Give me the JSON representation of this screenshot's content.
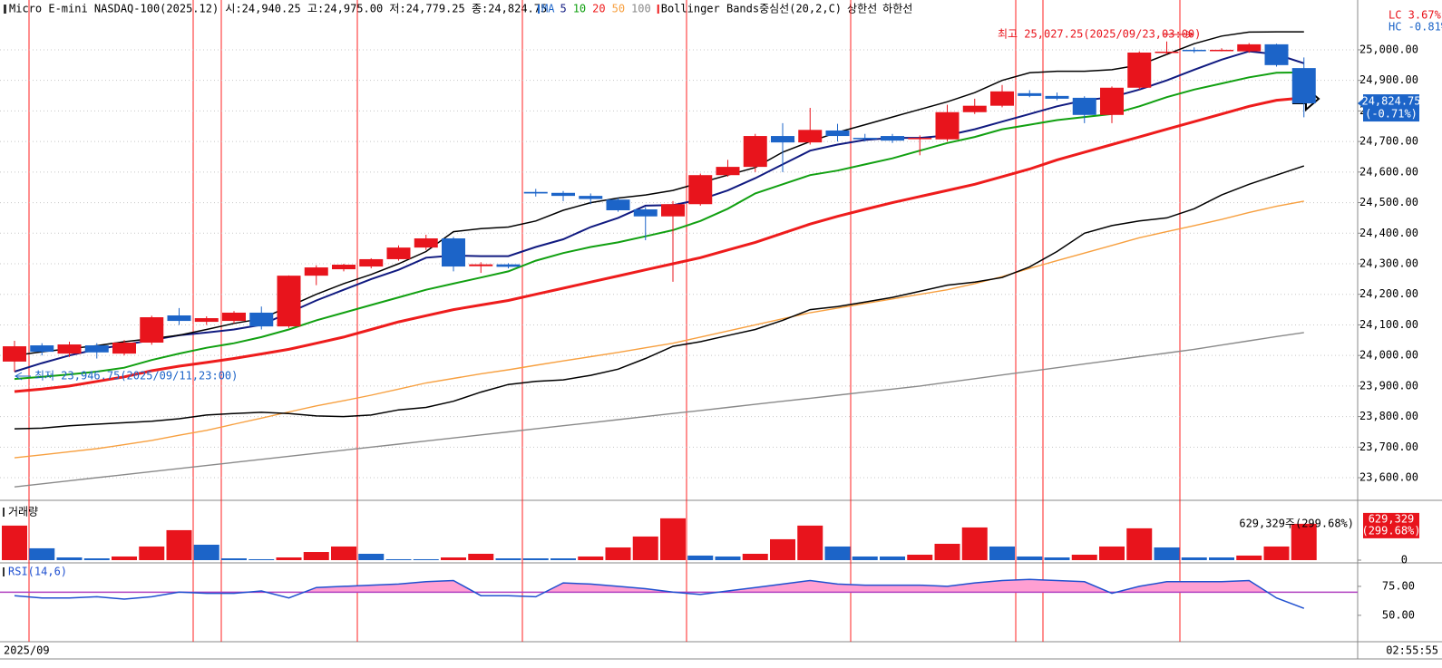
{
  "chart_data": [
    {
      "type": "candlestick",
      "title": "Micro E-mini NASDAQ-100(2025.12) 시:24,940.25 고:24,975.00 저:24,779.25 종:24,824.75",
      "up_color": "#e8141c",
      "down_color": "#1c64c8",
      "open": [
        23980,
        24033,
        24006,
        24033,
        24006,
        24042,
        24131,
        24110,
        24113,
        24140,
        24095,
        24261,
        24282,
        24291,
        24315,
        24353,
        24383,
        24292,
        24298,
        24535,
        24532,
        24522,
        24510,
        24478,
        24455,
        24495,
        24590,
        24617,
        24718,
        24697,
        24736,
        24712,
        24718,
        24708,
        24707,
        24796,
        24817,
        24858,
        24849,
        24843,
        24787,
        24876,
        24993,
        25000,
        24998,
        24995,
        25018,
        24940.25
      ],
      "high": [
        24048,
        24040,
        24045,
        24040,
        24050,
        24130,
        24155,
        24128,
        24145,
        24160,
        24262,
        24295,
        24300,
        24318,
        24360,
        24395,
        24388,
        24305,
        24302,
        24545,
        24538,
        24530,
        24515,
        24485,
        24505,
        24595,
        24640,
        24725,
        24760,
        24810,
        24758,
        24725,
        24725,
        24720,
        24820,
        24840,
        24885,
        24868,
        24860,
        24848,
        24880,
        24995,
        25027.25,
        25008,
        25005,
        25022,
        25020,
        24975
      ],
      "low": [
        23946.75,
        24000,
        23995,
        23990,
        24000,
        24035,
        24100,
        24100,
        24105,
        24085,
        24090,
        24230,
        24275,
        24285,
        24310,
        24345,
        24275,
        24270,
        24285,
        24520,
        24505,
        24495,
        24470,
        24377,
        24241,
        24490,
        24585,
        24600,
        24600,
        24690,
        24700,
        24700,
        24695,
        24655,
        24700,
        24790,
        24812,
        24845,
        24835,
        24760,
        24760,
        24870,
        24985,
        24990,
        24995,
        24990,
        24945,
        24779.25
      ],
      "close": [
        24030,
        24012,
        24036,
        24010,
        24042,
        24125,
        24113,
        24122,
        24140,
        24095,
        24261,
        24288,
        24297,
        24315,
        24353,
        24383,
        24291,
        24298,
        24290,
        24530,
        24522,
        24512,
        24475,
        24455,
        24495,
        24590,
        24617,
        24718,
        24697,
        24738,
        24718,
        24710,
        24703,
        24712,
        24796,
        24817,
        24864,
        24849,
        24840,
        24787,
        24876,
        24991,
        24994,
        24998,
        25000,
        25018,
        24950,
        24824.75
      ],
      "ylim": [
        23526,
        25163
      ],
      "yticks": [
        {
          "value": 23600,
          "label": "23,600.00"
        },
        {
          "value": 23700,
          "label": "23,700.00"
        },
        {
          "value": 23800,
          "label": "23,800.00"
        },
        {
          "value": 23900,
          "label": "23,900.00"
        },
        {
          "value": 24000,
          "label": "24,000.00"
        },
        {
          "value": 24100,
          "label": "24,100.00"
        },
        {
          "value": 24200,
          "label": "24,200.00"
        },
        {
          "value": 24300,
          "label": "24,300.00"
        },
        {
          "value": 24400,
          "label": "24,400.00"
        },
        {
          "value": 24500,
          "label": "24,500.00"
        },
        {
          "value": 24600,
          "label": "24,600.00"
        },
        {
          "value": 24700,
          "label": "24,700.00"
        },
        {
          "value": 24800,
          "label": "24,800.00"
        },
        {
          "value": 24900,
          "label": "24,900.00"
        },
        {
          "value": 25000,
          "label": "25,000.00"
        }
      ],
      "grid": true,
      "ma_label": "MA",
      "series": [
        {
          "name": "5",
          "color": "#101a80",
          "values": [
            23947,
            23975,
            24000,
            24020,
            24035,
            24050,
            24066,
            24075,
            24085,
            24100,
            24140,
            24180,
            24215,
            24250,
            24280,
            24320,
            24327,
            24325,
            24325,
            24355,
            24380,
            24420,
            24450,
            24490,
            24492,
            24510,
            24540,
            24580,
            24625,
            24670,
            24690,
            24705,
            24712,
            24712,
            24720,
            24740,
            24765,
            24790,
            24815,
            24835,
            24845,
            24870,
            24900,
            24935,
            24968,
            24995,
            24985,
            24956
          ]
        },
        {
          "name": "10",
          "color": "#11a011",
          "values": [
            23923,
            23930,
            23938,
            23947,
            23960,
            23985,
            24006,
            24025,
            24040,
            24060,
            24085,
            24115,
            24140,
            24165,
            24190,
            24215,
            24235,
            24255,
            24275,
            24310,
            24335,
            24355,
            24370,
            24390,
            24410,
            24440,
            24480,
            24530,
            24560,
            24590,
            24605,
            24625,
            24645,
            24670,
            24695,
            24715,
            24740,
            24755,
            24770,
            24780,
            24790,
            24815,
            24845,
            24870,
            24890,
            24910,
            24925,
            24926
          ]
        },
        {
          "name": "20",
          "color": "#ee1c1c",
          "values": [
            23882,
            23890,
            23900,
            23915,
            23930,
            23950,
            23965,
            23977,
            23990,
            24005,
            24020,
            24040,
            24060,
            24085,
            24110,
            24130,
            24150,
            24165,
            24180,
            24200,
            24220,
            24240,
            24260,
            24280,
            24300,
            24320,
            24345,
            24370,
            24400,
            24430,
            24455,
            24478,
            24500,
            24520,
            24540,
            24560,
            24585,
            24610,
            24640,
            24665,
            24690,
            24715,
            24740,
            24765,
            24790,
            24815,
            24835,
            24843
          ]
        },
        {
          "name": "50",
          "color": "#f7a040",
          "values": [
            23665,
            23675,
            23685,
            23695,
            23708,
            23722,
            23739,
            23755,
            23775,
            23795,
            23815,
            23835,
            23852,
            23870,
            23890,
            23910,
            23925,
            23940,
            23953,
            23968,
            23982,
            23996,
            24010,
            24025,
            24040,
            24060,
            24080,
            24100,
            24120,
            24140,
            24155,
            24170,
            24185,
            24200,
            24215,
            24235,
            24258,
            24285,
            24310,
            24335,
            24360,
            24385,
            24405,
            24425,
            24445,
            24468,
            24488,
            24505
          ]
        },
        {
          "name": "100",
          "color": "#8a8a8a",
          "values": [
            23570,
            23580,
            23590,
            23600,
            23610,
            23620,
            23630,
            23640,
            23650,
            23660,
            23670,
            23680,
            23690,
            23700,
            23710,
            23720,
            23730,
            23740,
            23750,
            23760,
            23770,
            23780,
            23790,
            23800,
            23810,
            23820,
            23830,
            23840,
            23850,
            23860,
            23870,
            23880,
            23890,
            23900,
            23912,
            23924,
            23936,
            23948,
            23960,
            23972,
            23984,
            23996,
            24008,
            24020,
            24034,
            24048,
            24062,
            24075
          ]
        }
      ],
      "bands": {
        "name": "Bollinger Bands중심선(20,2,C)",
        "center_color": "#ee1c1c",
        "color": "#000000",
        "upper": {
          "name": "상한선",
          "values": [
            24000,
            24012,
            24022,
            24032,
            24045,
            24055,
            24066,
            24085,
            24105,
            24120,
            24160,
            24200,
            24235,
            24265,
            24300,
            24340,
            24405,
            24415,
            24420,
            24440,
            24475,
            24500,
            24515,
            24525,
            24540,
            24565,
            24590,
            24615,
            24665,
            24700,
            24730,
            24755,
            24780,
            24805,
            24830,
            24860,
            24900,
            24925,
            24930,
            24930,
            24935,
            24950,
            24985,
            25020,
            25045,
            25058,
            25059,
            25059
          ]
        },
        "lower": {
          "name": "하한선",
          "values": [
            23760,
            23762,
            23770,
            23775,
            23780,
            23785,
            23793,
            23805,
            23810,
            23814,
            23810,
            23802,
            23800,
            23805,
            23822,
            23830,
            23850,
            23880,
            23905,
            23915,
            23920,
            23935,
            23955,
            23990,
            24030,
            24045,
            24065,
            24085,
            24115,
            24150,
            24160,
            24175,
            24190,
            24210,
            24230,
            24240,
            24255,
            24290,
            24340,
            24400,
            24425,
            24440,
            24450,
            24480,
            24525,
            24560,
            24590,
            24620
          ]
        }
      },
      "annotations": [
        {
          "text": "최고 25,027.25(2025/09/23,03:00)",
          "color": "#e8141c"
        },
        {
          "text": "최저 23,946.75(2025/09/11,23:00)",
          "color": "#1c64c8"
        }
      ],
      "last_price_label": "24,824.75",
      "last_change_label": "(-0.71%)",
      "lc_label": "LC  3.67%",
      "hc_label": "HC -0.81%",
      "x_label": "2025/09",
      "clock": "02:55:55"
    },
    {
      "type": "bar",
      "title": "거래량",
      "up_color": "#e8141c",
      "down_color": "#1c64c8",
      "values": [
        598000,
        205000,
        47000,
        31000,
        63000,
        236000,
        519000,
        267000,
        31000,
        16000,
        47000,
        141000,
        236000,
        110000,
        16000,
        16000,
        47000,
        110000,
        31000,
        31000,
        31000,
        63000,
        220000,
        409000,
        724000,
        79000,
        63000,
        110000,
        362000,
        598000,
        236000,
        63000,
        63000,
        94000,
        283000,
        566000,
        236000,
        63000,
        47000,
        94000,
        236000,
        551000,
        220000,
        47000,
        47000,
        79000,
        236000,
        629329
      ],
      "ylim": [
        0,
        1020000
      ],
      "yticks": [
        0
      ],
      "value_label": "629,329주(299.68%)",
      "last_label": "629,329",
      "last_change_label": "(299.68%)"
    },
    {
      "type": "line",
      "title": "RSI(14,6)",
      "color": "#2050d0",
      "fill_color": "#ff9fd2",
      "reference_color": "#b040c0",
      "reference_line": 70,
      "values": [
        67,
        65,
        65,
        66,
        64,
        66,
        70,
        69,
        69,
        71,
        65,
        74,
        75,
        76,
        77,
        79,
        80,
        67,
        67,
        66,
        78,
        77,
        75,
        73,
        70,
        68,
        71,
        74,
        77,
        80,
        77,
        76,
        76,
        76,
        75,
        78,
        80,
        81,
        80,
        79,
        69,
        75,
        79,
        79,
        79,
        80,
        65,
        56
      ],
      "ylim": [
        28,
        94.5
      ],
      "yticks": [
        {
          "value": 75,
          "label": "75.00"
        },
        {
          "value": 50,
          "label": "50.00"
        }
      ]
    }
  ]
}
